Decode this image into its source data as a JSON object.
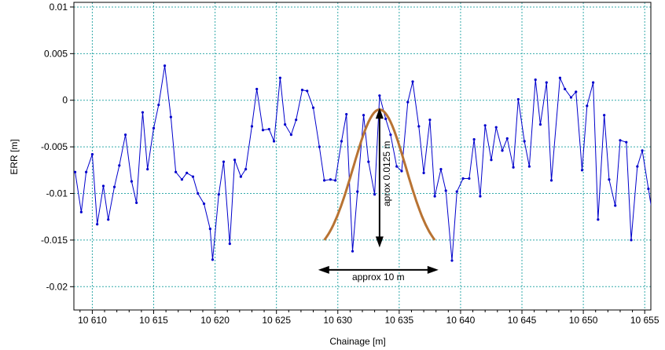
{
  "chart_data": {
    "type": "line",
    "xlabel": "Chainage [m]",
    "ylabel": "ERR [m]",
    "xlim": [
      10608.5,
      10655.5
    ],
    "ylim": [
      -0.0225,
      0.0105
    ],
    "grid": true,
    "x_ticks": [
      10610,
      10615,
      10620,
      10625,
      10630,
      10635,
      10640,
      10645,
      10650,
      10655
    ],
    "x_tick_labels": [
      "10 610",
      "10 615",
      "10 620",
      "10 625",
      "10 630",
      "10 635",
      "10 640",
      "10 645",
      "10 650",
      "10 655"
    ],
    "y_ticks": [
      0.01,
      0.005,
      0,
      -0.005,
      -0.01,
      -0.015,
      -0.02
    ],
    "y_tick_labels": [
      "0.01",
      "0.005",
      "0",
      "-0.005",
      "-0.01",
      "-0.015",
      "-0.02"
    ],
    "series": [
      {
        "color": "#0000cc",
        "marker": "dot",
        "points": [
          [
            10608.6,
            -0.0077
          ],
          [
            10609.1,
            -0.012
          ],
          [
            10609.5,
            -0.0077
          ],
          [
            10610.0,
            -0.0058
          ],
          [
            10610.4,
            -0.0133
          ],
          [
            10610.9,
            -0.0092
          ],
          [
            10611.3,
            -0.0128
          ],
          [
            10611.8,
            -0.0093
          ],
          [
            10612.2,
            -0.007
          ],
          [
            10612.7,
            -0.0037
          ],
          [
            10613.2,
            -0.0087
          ],
          [
            10613.6,
            -0.011
          ],
          [
            10614.1,
            -0.0013
          ],
          [
            10614.5,
            -0.0074
          ],
          [
            10615.0,
            -0.003
          ],
          [
            10615.4,
            -0.0005
          ],
          [
            10615.9,
            0.0037
          ],
          [
            10616.4,
            -0.0018
          ],
          [
            10616.8,
            -0.0077
          ],
          [
            10617.3,
            -0.0085
          ],
          [
            10617.7,
            -0.0078
          ],
          [
            10618.2,
            -0.0082
          ],
          [
            10618.6,
            -0.01
          ],
          [
            10619.1,
            -0.0111
          ],
          [
            10619.6,
            -0.0138
          ],
          [
            10619.8,
            -0.0171
          ],
          [
            10620.3,
            -0.0101
          ],
          [
            10620.7,
            -0.0066
          ],
          [
            10621.2,
            -0.0154
          ],
          [
            10621.6,
            -0.0064
          ],
          [
            10622.1,
            -0.0082
          ],
          [
            10622.5,
            -0.0074
          ],
          [
            10623.0,
            -0.0028
          ],
          [
            10623.4,
            0.0012
          ],
          [
            10623.9,
            -0.0032
          ],
          [
            10624.4,
            -0.0031
          ],
          [
            10624.8,
            -0.0044
          ],
          [
            10625.3,
            0.0024
          ],
          [
            10625.7,
            -0.0026
          ],
          [
            10626.2,
            -0.0037
          ],
          [
            10626.6,
            -0.0021
          ],
          [
            10627.1,
            0.0011
          ],
          [
            10627.5,
            0.001
          ],
          [
            10628.0,
            -0.0008
          ],
          [
            10628.5,
            -0.005
          ],
          [
            10628.9,
            -0.0086
          ],
          [
            10629.4,
            -0.0085
          ],
          [
            10629.8,
            -0.0086
          ],
          [
            10630.3,
            -0.0044
          ],
          [
            10630.7,
            -0.0015
          ],
          [
            10631.2,
            -0.0162
          ],
          [
            10631.6,
            -0.0098
          ],
          [
            10632.1,
            -0.0016
          ],
          [
            10632.5,
            -0.0066
          ],
          [
            10633.0,
            -0.0101
          ],
          [
            10633.4,
            0.0005
          ],
          [
            10633.9,
            -0.002
          ],
          [
            10634.3,
            -0.0037
          ],
          [
            10634.8,
            -0.0071
          ],
          [
            10635.2,
            -0.0076
          ],
          [
            10635.7,
            -0.0002
          ],
          [
            10636.1,
            0.002
          ],
          [
            10636.6,
            -0.0028
          ],
          [
            10637.0,
            -0.0078
          ],
          [
            10637.5,
            -0.0021
          ],
          [
            10637.9,
            -0.0103
          ],
          [
            10638.4,
            -0.0074
          ],
          [
            10638.8,
            -0.0097
          ],
          [
            10639.3,
            -0.0172
          ],
          [
            10639.7,
            -0.0098
          ],
          [
            10640.2,
            -0.0084
          ],
          [
            10640.7,
            -0.0084
          ],
          [
            10641.1,
            -0.0042
          ],
          [
            10641.6,
            -0.0103
          ],
          [
            10642.0,
            -0.0027
          ],
          [
            10642.5,
            -0.0064
          ],
          [
            10642.9,
            -0.0029
          ],
          [
            10643.4,
            -0.0054
          ],
          [
            10643.8,
            -0.0041
          ],
          [
            10644.3,
            -0.0072
          ],
          [
            10644.7,
            0.0001
          ],
          [
            10645.2,
            -0.0044
          ],
          [
            10645.6,
            -0.0071
          ],
          [
            10646.1,
            0.0022
          ],
          [
            10646.5,
            -0.0026
          ],
          [
            10647.0,
            0.0019
          ],
          [
            10647.4,
            -0.0086
          ],
          [
            10648.1,
            0.0024
          ],
          [
            10648.5,
            0.0012
          ],
          [
            10649.0,
            0.0003
          ],
          [
            10649.4,
            0.0009
          ],
          [
            10649.9,
            -0.0075
          ],
          [
            10650.3,
            -0.0006
          ],
          [
            10650.8,
            0.0019
          ],
          [
            10651.2,
            -0.0128
          ],
          [
            10651.7,
            -0.0016
          ],
          [
            10652.1,
            -0.0085
          ],
          [
            10652.6,
            -0.0113
          ],
          [
            10653.0,
            -0.0043
          ],
          [
            10653.5,
            -0.0045
          ],
          [
            10653.9,
            -0.015
          ],
          [
            10654.4,
            -0.0071
          ],
          [
            10654.8,
            -0.0054
          ],
          [
            10655.3,
            -0.0095
          ],
          [
            10655.7,
            -0.0128
          ],
          [
            10656.1,
            -0.0115
          ]
        ]
      }
    ],
    "annotations": {
      "curve_color": "#b87333",
      "width_label": "approx 10 m",
      "height_label": "aprox 0.0125 m",
      "curve_center_x": 10633.4,
      "curve_peak_y": -0.001,
      "curve_base_y": -0.015,
      "curve_start_x": 10628.9,
      "curve_end_x": 10637.9,
      "width_arrow_y": -0.0182,
      "width_arrow_x": [
        10628.4,
        10638.2
      ],
      "height_arrow_x": 10633.4,
      "height_arrow_y": [
        -0.0008,
        -0.0158
      ]
    }
  }
}
